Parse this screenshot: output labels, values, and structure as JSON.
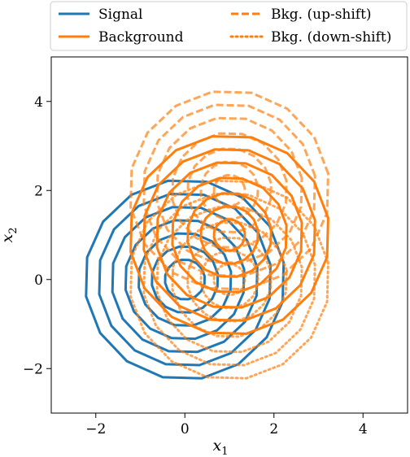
{
  "chart_data": {
    "type": "contour",
    "title": "",
    "xlabel": "x_1",
    "ylabel": "x_2",
    "xlim": [
      -3,
      5
    ],
    "ylim": [
      -3,
      5
    ],
    "xticks": [
      -2,
      0,
      2,
      4
    ],
    "yticks": [
      -2,
      0,
      2,
      4
    ],
    "xtick_labels": [
      "−2",
      "0",
      "2",
      "4"
    ],
    "ytick_labels": [
      "−2",
      "0",
      "2",
      "4"
    ],
    "grid": false,
    "legend": {
      "placement": "top (above plot)",
      "columns": 2,
      "entries": [
        {
          "label": "Signal",
          "color": "#1f77b4",
          "style": "solid"
        },
        {
          "label": "Background",
          "color": "#ff7f0e",
          "style": "solid"
        },
        {
          "label": "Bkg. (up-shift)",
          "color": "#ff7f0e",
          "style": "dashed"
        },
        {
          "label": "Bkg. (down-shift)",
          "color": "#ff7f0e",
          "style": "dotted"
        }
      ]
    },
    "series": [
      {
        "name": "Signal",
        "color": "#1f77b4",
        "style": "solid",
        "center": [
          0,
          0
        ],
        "radii": [
          0.45,
          0.75,
          1.05,
          1.35,
          1.65,
          1.95,
          2.25
        ]
      },
      {
        "name": "Background",
        "color": "#ff7f0e",
        "style": "solid",
        "center": [
          1,
          1
        ],
        "radii": [
          0.35,
          0.65,
          0.95,
          1.3,
          1.65,
          1.95,
          2.25
        ]
      },
      {
        "name": "Bkg. (up-shift)",
        "color": "#ff7f0e",
        "style": "dashed",
        "center": [
          1,
          2
        ],
        "radii": [
          0.35,
          0.65,
          0.95,
          1.3,
          1.65,
          1.95,
          2.25
        ]
      },
      {
        "name": "Bkg. (down-shift)",
        "color": "#ff7f0e",
        "style": "dotted",
        "center": [
          1,
          0
        ],
        "radii": [
          0.35,
          0.65,
          0.95,
          1.3,
          1.65,
          1.95,
          2.25
        ]
      }
    ]
  }
}
